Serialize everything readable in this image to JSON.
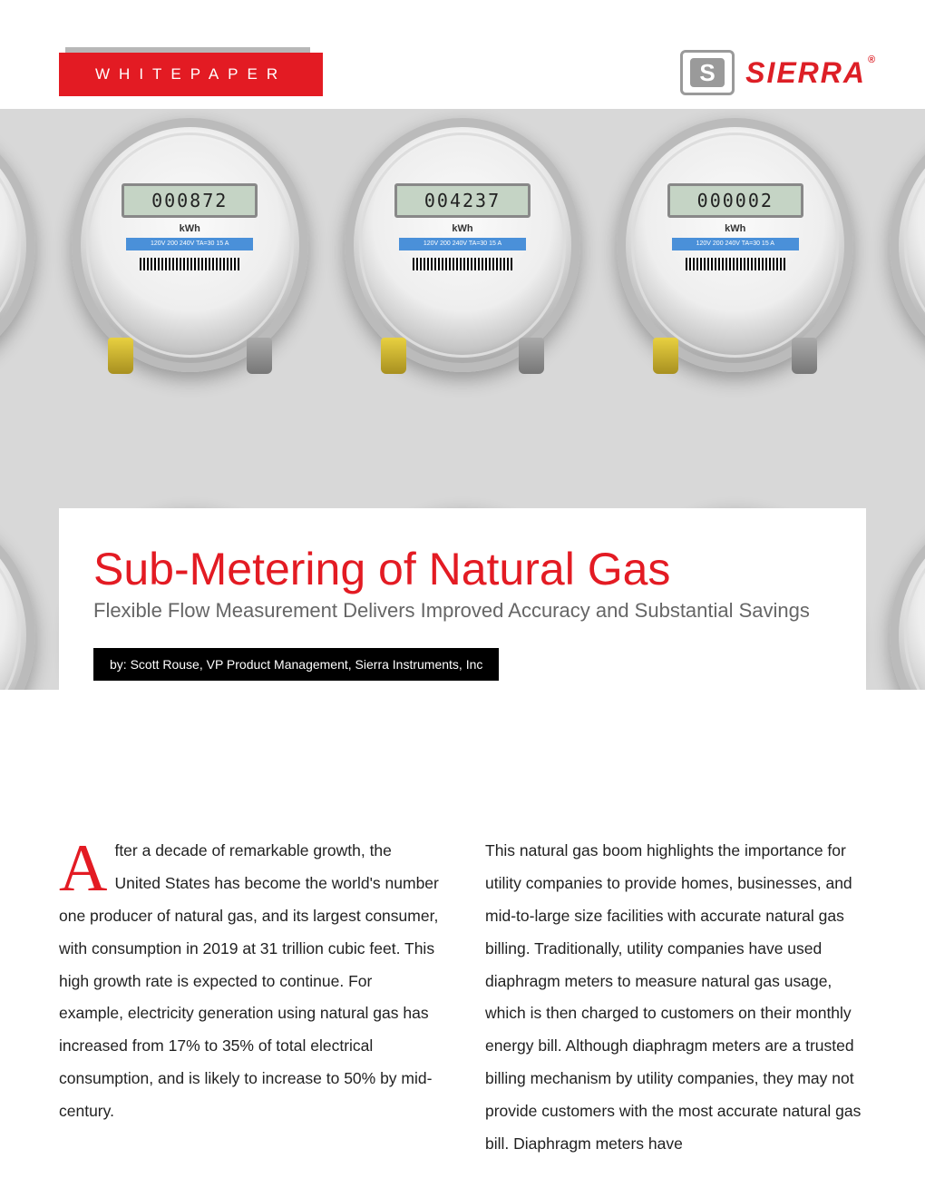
{
  "header": {
    "badge_label": "WHITEPAPER",
    "logo_text": "SIERRA",
    "logo_mark_letter": "S"
  },
  "hero": {
    "meters": [
      {
        "reading": "000872",
        "unit": "kWh",
        "strip": "120V 200 240V TA=30 15 A"
      },
      {
        "reading": "004237",
        "unit": "kWh",
        "strip": "120V 200 240V TA=30 15 A"
      },
      {
        "reading": "000002",
        "unit": "kWh",
        "strip": "120V 200 240V TA=30 15 A"
      }
    ]
  },
  "title": {
    "main": "Sub-Metering of Natural Gas",
    "sub": "Flexible Flow Measurement Delivers Improved Accuracy and Substantial Savings",
    "byline": "by: Scott Rouse, VP Product Management, Sierra Instruments, Inc"
  },
  "body": {
    "dropcap": "A",
    "col1": "fter a decade of remarkable growth, the United States has become the world's number one producer of natural gas, and its largest consumer, with consumption in 2019 at 31 trillion cubic feet. This high growth rate is expected to continue. For example, electricity generation using natural gas has increased from 17% to 35% of total electrical consumption, and is likely to increase to 50% by mid-century.",
    "col2": "This natural gas boom highlights the importance for utility companies to provide homes, businesses, and mid-to-large size facilities with accurate natural gas billing. Traditionally, utility companies have used diaphragm meters to measure natural gas usage, which is then charged to customers on their monthly energy bill. Although diaphragm meters are a trusted billing mechanism by utility companies, they may not provide customers with the most accurate natural gas bill. Diaphragm meters have"
  },
  "colors": {
    "brand_red": "#e31b23",
    "logo_red": "#dd1f26",
    "text_gray": "#666666",
    "body_text": "#222222",
    "hero_bg": "#d8d8d8"
  }
}
